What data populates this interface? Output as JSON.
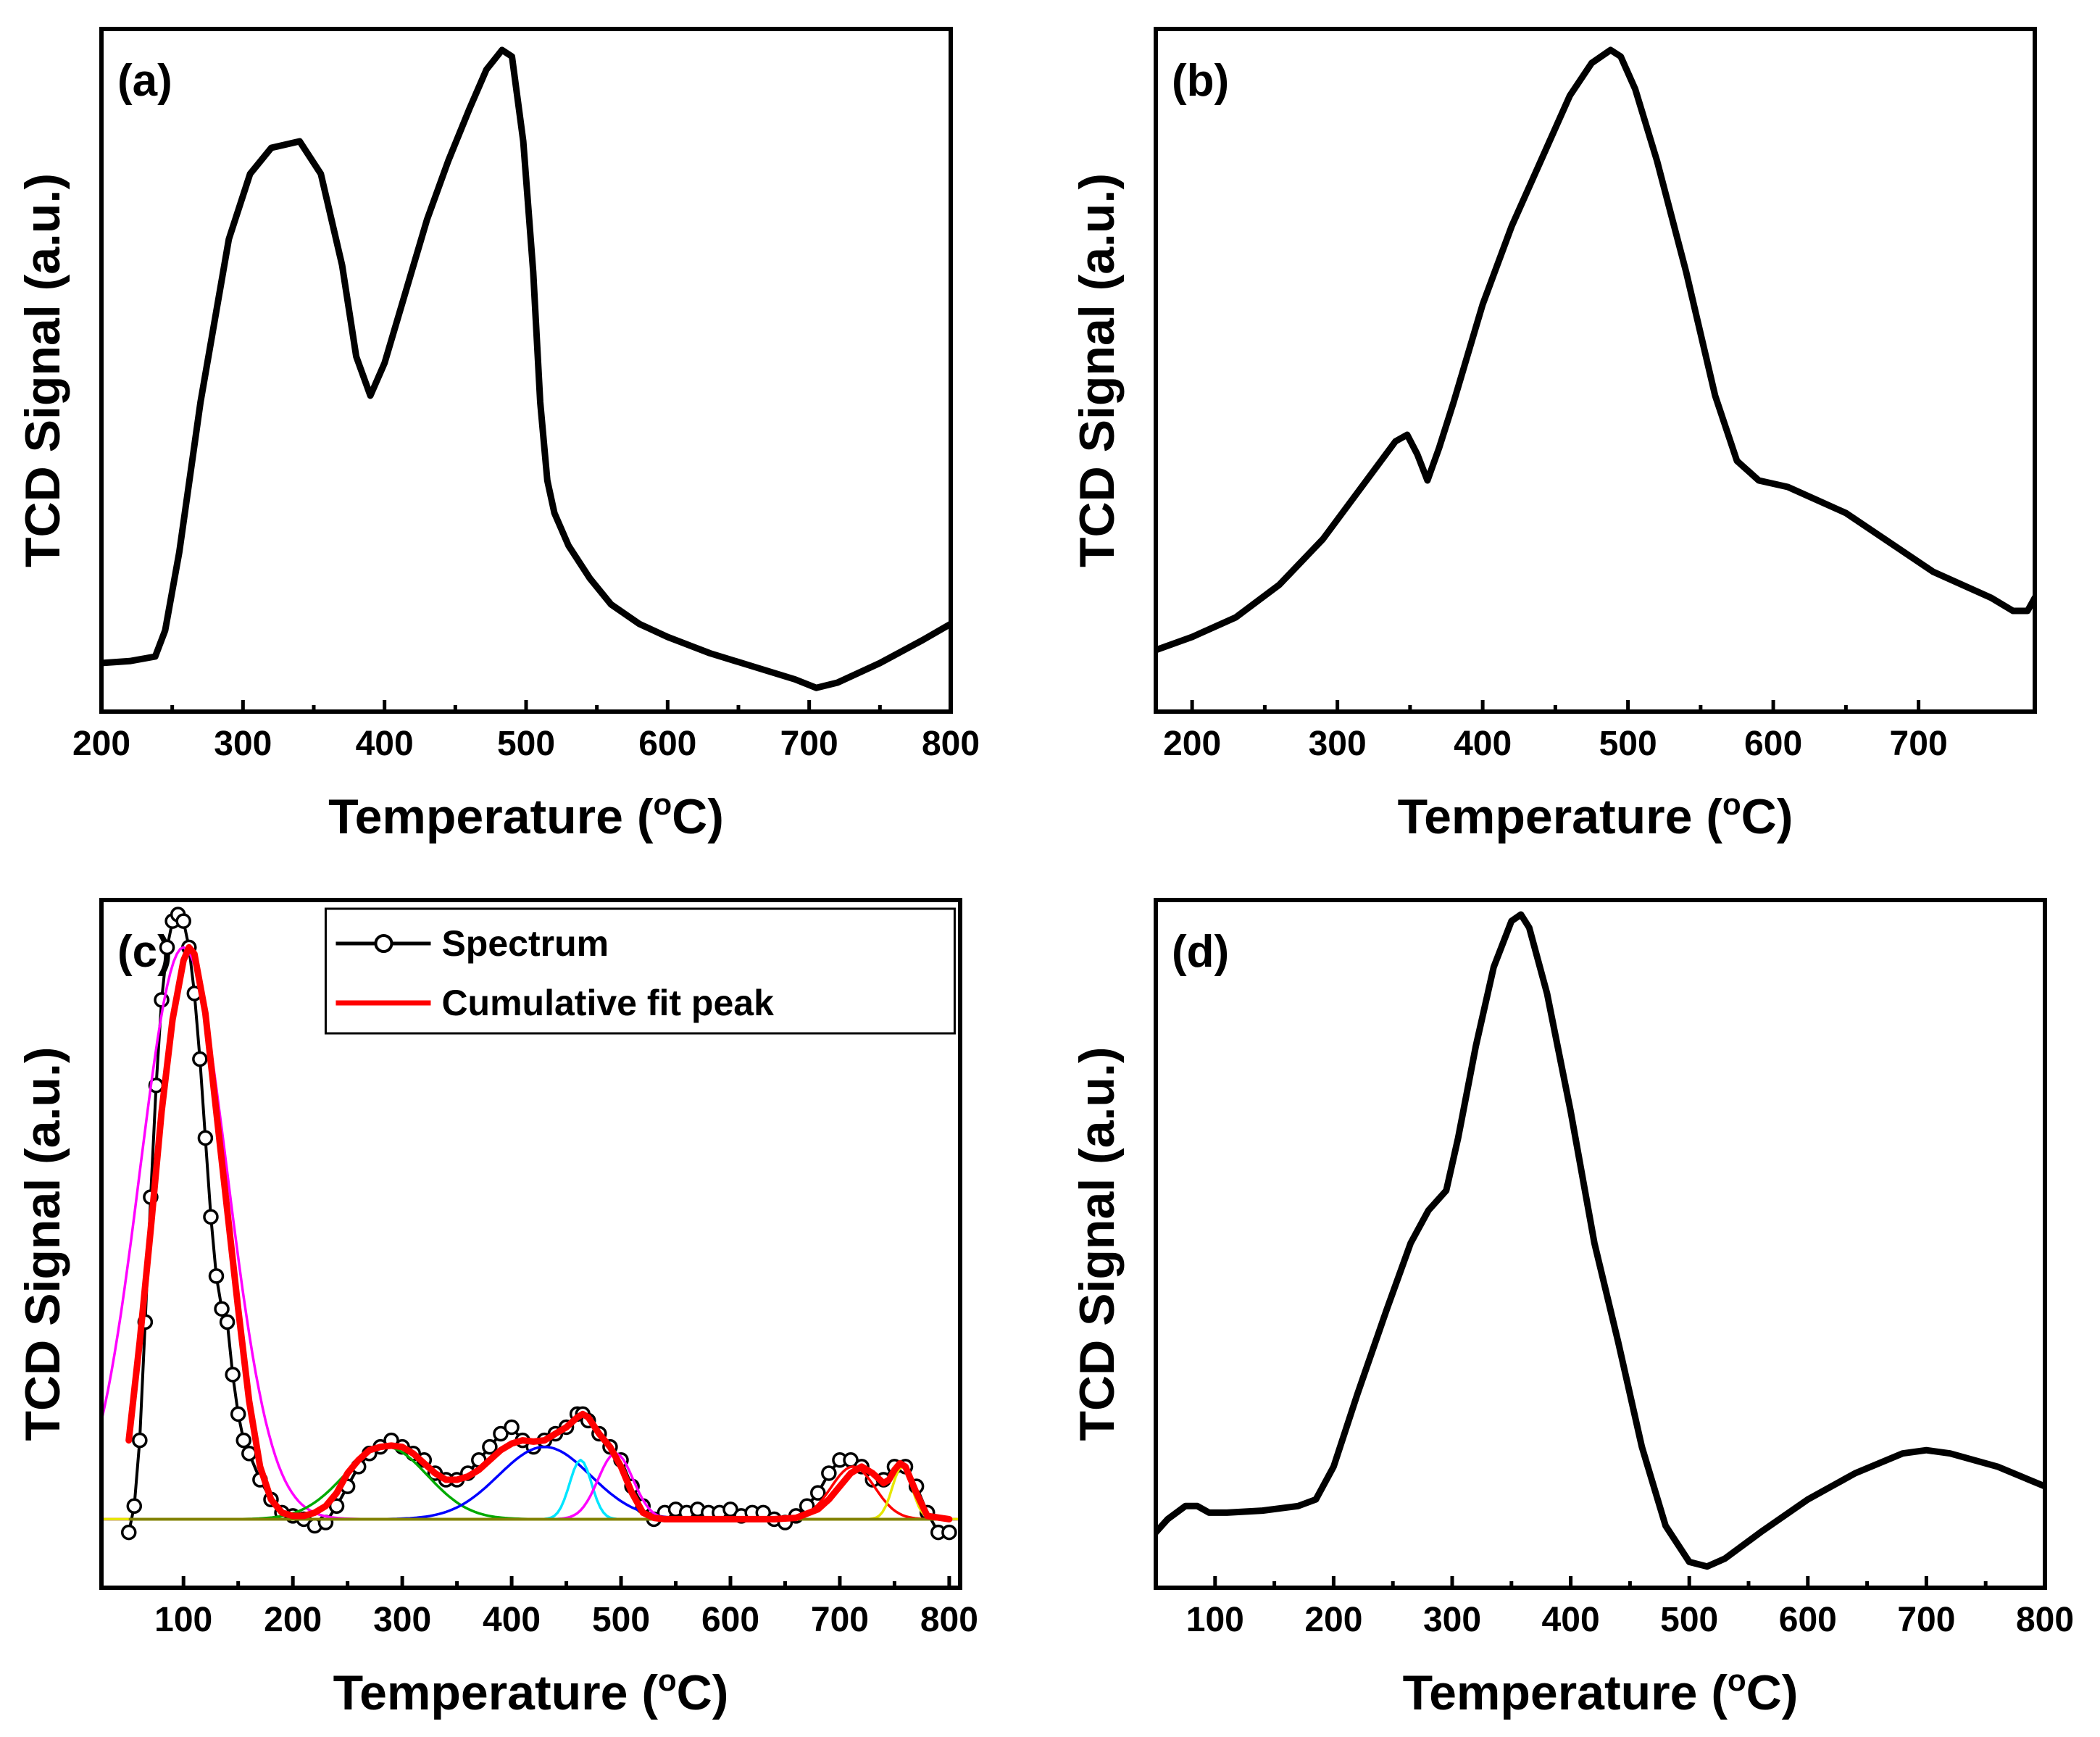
{
  "figure": {
    "description_panels": [
      "a",
      "b",
      "c",
      "d"
    ]
  },
  "chart_data": [
    {
      "id": "a",
      "type": "line",
      "panel_label": "(a)",
      "xlabel": "Temperature (",
      "xlabel_degree": "o",
      "xlabel_unit": "C)",
      "ylabel": "TCD Signal (a.u.)",
      "xlim": [
        200,
        800
      ],
      "ylim": [
        0,
        100
      ],
      "xticks": [
        200,
        300,
        400,
        500,
        600,
        700,
        800
      ],
      "series": [
        {
          "name": "TCD signal",
          "color": "#000000",
          "x": [
            200,
            220,
            238,
            245,
            255,
            270,
            290,
            305,
            320,
            340,
            355,
            370,
            380,
            390,
            400,
            415,
            430,
            445,
            460,
            472,
            483,
            490,
            498,
            505,
            510,
            515,
            520,
            530,
            545,
            560,
            580,
            600,
            630,
            660,
            690,
            705,
            720,
            750,
            780,
            800
          ],
          "y": [
            5,
            5.3,
            6,
            10,
            22,
            45,
            70,
            80,
            84,
            85,
            80,
            66,
            52,
            46,
            51,
            62,
            73,
            82,
            90,
            96,
            99,
            98,
            85,
            65,
            45,
            33,
            28,
            23,
            18,
            14,
            11,
            9,
            6.5,
            4.5,
            2.5,
            1.2,
            2,
            5,
            8.5,
            11
          ]
        }
      ]
    },
    {
      "id": "b",
      "type": "line",
      "panel_label": "(b)",
      "xlabel": "Temperature (",
      "xlabel_degree": "o",
      "xlabel_unit": "C)",
      "ylabel": "TCD Signal (a.u.)",
      "xlim": [
        175,
        780
      ],
      "ylim": [
        0,
        100
      ],
      "xticks": [
        200,
        300,
        400,
        500,
        600,
        700
      ],
      "series": [
        {
          "name": "TCD signal",
          "color": "#000000",
          "x": [
            175,
            200,
            230,
            260,
            290,
            310,
            330,
            340,
            348,
            355,
            362,
            370,
            380,
            400,
            420,
            440,
            460,
            475,
            488,
            495,
            505,
            520,
            540,
            560,
            575,
            590,
            610,
            630,
            650,
            670,
            690,
            710,
            730,
            750,
            765,
            775,
            780
          ],
          "y": [
            7,
            9,
            12,
            17,
            24,
            30,
            36,
            39,
            40,
            37,
            33,
            38,
            45,
            60,
            72,
            82,
            92,
            97,
            99,
            98,
            93,
            82,
            65,
            46,
            36,
            33,
            32,
            30,
            28,
            25,
            22,
            19,
            17,
            15,
            13,
            13,
            15
          ]
        }
      ]
    },
    {
      "id": "c",
      "type": "line",
      "panel_label": "(c)",
      "xlabel": "Temperature (",
      "xlabel_degree": "o",
      "xlabel_unit": "C)",
      "ylabel": "TCD Signal (a.u.)",
      "xlim": [
        25,
        810
      ],
      "ylim": [
        0,
        100
      ],
      "xticks": [
        100,
        200,
        300,
        400,
        500,
        600,
        700,
        800
      ],
      "baseline": 8,
      "legend": [
        {
          "label": "Spectrum",
          "color": "#000000",
          "marker": "circle"
        },
        {
          "label": "Cumulative fit peak",
          "color": "#ff0000",
          "marker": "none"
        }
      ],
      "series": [
        {
          "name": "Spectrum",
          "color": "#000000",
          "marker": "circle",
          "x": [
            50,
            55,
            60,
            65,
            70,
            75,
            80,
            85,
            90,
            95,
            100,
            105,
            110,
            115,
            120,
            125,
            130,
            135,
            140,
            145,
            150,
            155,
            160,
            170,
            180,
            190,
            200,
            210,
            220,
            230,
            240,
            250,
            260,
            270,
            280,
            290,
            300,
            310,
            320,
            330,
            340,
            350,
            360,
            370,
            380,
            390,
            400,
            410,
            420,
            430,
            440,
            450,
            460,
            465,
            470,
            480,
            490,
            500,
            510,
            520,
            530,
            540,
            550,
            560,
            570,
            580,
            590,
            600,
            610,
            620,
            630,
            640,
            650,
            660,
            670,
            680,
            690,
            700,
            710,
            720,
            730,
            740,
            750,
            760,
            770,
            780,
            790,
            800
          ],
          "y": [
            6,
            10,
            20,
            38,
            57,
            74,
            87,
            95,
            99,
            100,
            99,
            95,
            88,
            78,
            66,
            54,
            45,
            40,
            38,
            30,
            24,
            20,
            18,
            14,
            11,
            9,
            8.5,
            8,
            7,
            7.5,
            10,
            13,
            16,
            18,
            19,
            20,
            19,
            18,
            17,
            15,
            14,
            14,
            15,
            17,
            19,
            21,
            22,
            20,
            19,
            20,
            21,
            22,
            24,
            24,
            23,
            21,
            19,
            17,
            13,
            10,
            8,
            9,
            9.5,
            9,
            9.5,
            9,
            9,
            9.5,
            8.5,
            9,
            9,
            8,
            7.5,
            8.5,
            10,
            12,
            15,
            17,
            17,
            16,
            14,
            14,
            16,
            16,
            13,
            9,
            6,
            6
          ]
        },
        {
          "name": "Cumulative fit peak",
          "color": "#ff0000",
          "x": [
            50,
            60,
            70,
            80,
            90,
            100,
            105,
            110,
            120,
            130,
            140,
            150,
            160,
            170,
            180,
            190,
            200,
            210,
            220,
            230,
            240,
            250,
            260,
            270,
            280,
            290,
            300,
            310,
            320,
            330,
            340,
            350,
            360,
            370,
            380,
            390,
            400,
            410,
            420,
            430,
            440,
            450,
            460,
            465,
            470,
            480,
            490,
            500,
            510,
            520,
            530,
            540,
            560,
            600,
            640,
            660,
            680,
            690,
            700,
            710,
            720,
            730,
            740,
            745,
            750,
            755,
            760,
            770,
            780,
            800
          ],
          "y": [
            20,
            35,
            52,
            70,
            84,
            93,
            95,
            94,
            85,
            70,
            55,
            40,
            26,
            16,
            11,
            9,
            8.5,
            8.5,
            9,
            10,
            12,
            15,
            17,
            18.5,
            19,
            19.2,
            19,
            18,
            16.5,
            15,
            14,
            14,
            14.5,
            15.5,
            17,
            18.5,
            19.5,
            20,
            19.8,
            20,
            21,
            22,
            23.5,
            24,
            23.5,
            21,
            19,
            16,
            12,
            9,
            8.2,
            8,
            8,
            8,
            8,
            8.2,
            9.5,
            11,
            13,
            15,
            16,
            15,
            13.5,
            14,
            15.5,
            16.5,
            16,
            12,
            8.5,
            8
          ]
        },
        {
          "name": "fit 1",
          "color": "#ff00ff",
          "center": 100,
          "height": 87,
          "width": 40
        },
        {
          "name": "fit 2",
          "color": "#00aa00",
          "center": 285,
          "height": 11,
          "width": 38
        },
        {
          "name": "fit 3",
          "color": "#0000ff",
          "center": 430,
          "height": 11,
          "width": 42
        },
        {
          "name": "fit 4",
          "color": "#00e5ff",
          "center": 463,
          "height": 9,
          "width": 10
        },
        {
          "name": "fit 5",
          "color": "#ff00ff",
          "center": 495,
          "height": 10,
          "width": 16
        },
        {
          "name": "fit 6",
          "color": "#ff0000",
          "center": 712,
          "height": 8,
          "width": 20
        },
        {
          "name": "fit 7",
          "color": "#e6e600",
          "center": 757,
          "height": 8,
          "width": 9
        }
      ]
    },
    {
      "id": "d",
      "type": "line",
      "panel_label": "(d)",
      "xlabel": "Temperature (",
      "xlabel_degree": "o",
      "xlabel_unit": "C)",
      "ylabel": "TCD Signal (a.u.)",
      "xlim": [
        50,
        800
      ],
      "ylim": [
        0,
        100
      ],
      "xticks": [
        100,
        200,
        300,
        400,
        500,
        600,
        700,
        800
      ],
      "series": [
        {
          "name": "TCD signal",
          "color": "#000000",
          "x": [
            50,
            60,
            75,
            85,
            95,
            110,
            140,
            170,
            185,
            200,
            220,
            245,
            265,
            280,
            295,
            305,
            320,
            335,
            350,
            358,
            365,
            380,
            400,
            420,
            440,
            460,
            480,
            500,
            515,
            530,
            560,
            600,
            640,
            680,
            700,
            720,
            760,
            800
          ],
          "y": [
            6,
            8,
            10,
            10,
            9,
            9,
            9.3,
            10,
            11,
            16,
            27,
            40,
            50,
            55,
            58,
            66,
            80,
            92,
            99,
            100,
            98,
            88,
            70,
            50,
            35,
            19,
            7,
            1.5,
            0.8,
            2,
            6,
            11,
            15,
            18,
            18.5,
            18,
            16,
            13
          ]
        }
      ]
    }
  ]
}
